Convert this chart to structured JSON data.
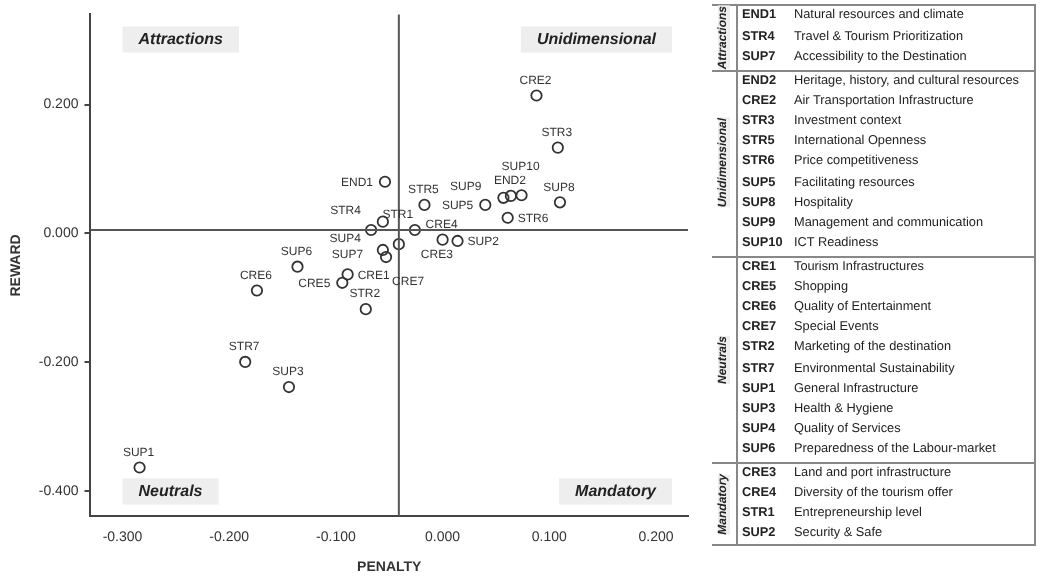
{
  "chart_data": [
    {
      "type": "scatter",
      "xlabel": "PENALTY",
      "ylabel": "REWARD",
      "marker": "circle",
      "grid": false,
      "legend": false,
      "xlim": [
        -0.33,
        0.23
      ],
      "ylim": [
        -0.44,
        0.34
      ],
      "xticks": [
        {
          "value": -0.3,
          "label": "-0.300"
        },
        {
          "value": -0.2,
          "label": "-0.200"
        },
        {
          "value": -0.1,
          "label": "-0.100"
        },
        {
          "value": 0,
          "label": "0.000"
        },
        {
          "value": 0.1,
          "label": "0.100"
        },
        {
          "value": 0.2,
          "label": "0.200"
        }
      ],
      "yticks": [
        {
          "value": -0.4,
          "label": "-0.400"
        },
        {
          "value": -0.2,
          "label": "-0.200"
        },
        {
          "value": 0,
          "label": "0.000"
        },
        {
          "value": 0.2,
          "label": "0.200"
        }
      ],
      "ref_lines": [
        {
          "axis": "x",
          "value": -0.041,
          "color": "#555555"
        },
        {
          "axis": "y",
          "value": 0.005,
          "color": "#555555"
        }
      ],
      "annotations": [
        "Attractions",
        "Unidimensional",
        "Neutrals",
        "Mandatory"
      ],
      "series": [
        {
          "color": "#333333",
          "x": [
            -0.054,
            -0.056,
            -0.067,
            0.064,
            0.088,
            0.108,
            -0.017,
            0.061,
            0.04,
            0.11,
            0.057,
            0.074,
            -0.089,
            -0.094,
            -0.174,
            -0.053,
            -0.072,
            -0.185,
            -0.284,
            -0.144,
            -0.056,
            -0.136,
            -0.026,
            0.0,
            -0.041,
            0.014
          ],
          "values": [
            0.08,
            0.018,
            0.005,
            0.058,
            0.214,
            0.133,
            0.044,
            0.024,
            0.044,
            0.048,
            0.055,
            0.059,
            -0.064,
            -0.077,
            -0.089,
            -0.037,
            -0.118,
            -0.2,
            -0.364,
            -0.239,
            -0.026,
            -0.052,
            0.005,
            -0.01,
            -0.017,
            -0.012
          ],
          "value_labels": [
            "END1",
            "STR4",
            "SUP7",
            "END2",
            "CRE2",
            "STR3",
            "STR5",
            "STR6",
            "SUP5",
            "SUP8",
            "SUP9",
            "SUP10",
            "CRE1",
            "CRE5",
            "CRE6",
            "CRE7",
            "STR2",
            "STR7",
            "SUP1",
            "SUP3",
            "SUP4",
            "SUP6",
            "CRE3",
            "CRE4",
            "STR1",
            "SUP2"
          ]
        }
      ]
    },
    {
      "type": "other",
      "categories": [
        "Attractions",
        null,
        null,
        "Unidimensional",
        null,
        null,
        null,
        null,
        null,
        null,
        null,
        null,
        "Neutrals",
        null,
        null,
        null,
        null,
        null,
        null,
        null,
        null,
        null,
        "Mandatory",
        null,
        null,
        null
      ],
      "y_categories": [
        "END1",
        "STR4",
        "SUP7",
        "END2",
        "CRE2",
        "STR3",
        "STR5",
        "STR6",
        "SUP5",
        "SUP8",
        "SUP9",
        "SUP10",
        "CRE1",
        "CRE5",
        "CRE6",
        "CRE7",
        "STR2",
        "STR7",
        "SUP1",
        "SUP3",
        "SUP4",
        "SUP6",
        "CRE3",
        "CRE4",
        "STR1",
        "SUP2"
      ],
      "y2_categories": [
        "Natural resources and climate",
        "Travel & Tourism Prioritization",
        "Accessibility to the Destination",
        "Heritage, history, and cultural resources",
        "Air Transportation Infrastructure",
        "Investment context",
        "International Openness",
        "Price competitiveness",
        "Facilitating resources",
        "Hospitality",
        "Management and communication",
        "ICT Readiness",
        "Tourism Infrastructures",
        "Shopping",
        "Quality of Entertainment",
        "Special Events",
        "Marketing of the destination",
        "Environmental Sustainability",
        "General Infrastructure",
        "Health & Hygiene",
        "Quality of Services",
        "Preparedness of the Labour-market",
        "Land and port infrastructure",
        "Diversity of the tourism offer",
        "Entrepreneurship level",
        "Security & Safe"
      ]
    }
  ]
}
